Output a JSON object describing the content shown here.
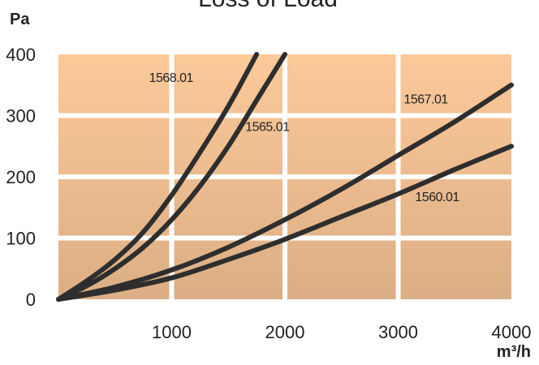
{
  "chart_data": {
    "type": "line",
    "title": "Loss of Load",
    "ylabel": "Pa",
    "xlabel": "m³/h",
    "xlim": [
      0,
      4000
    ],
    "ylim": [
      0,
      400
    ],
    "x_ticks": [
      1000,
      2000,
      3000,
      4000
    ],
    "y_ticks": [
      0,
      100,
      200,
      300,
      400
    ],
    "grid": true,
    "colors": {
      "band_top": "#fcc999",
      "band_bottom": "#dcae85",
      "line": "#2e2e2e"
    },
    "series": [
      {
        "name": "1568.01",
        "x": [
          0,
          250,
          500,
          750,
          1000,
          1250,
          1500,
          1750
        ],
        "y": [
          0,
          30,
          65,
          110,
          170,
          240,
          315,
          400
        ]
      },
      {
        "name": "1565.01",
        "x": [
          0,
          250,
          500,
          750,
          1000,
          1250,
          1500,
          1750,
          2000
        ],
        "y": [
          0,
          22,
          50,
          85,
          130,
          185,
          250,
          325,
          400
        ]
      },
      {
        "name": "1567.01",
        "x": [
          0,
          500,
          1000,
          1500,
          2000,
          2500,
          3000,
          3500,
          4000
        ],
        "y": [
          0,
          20,
          48,
          85,
          130,
          180,
          235,
          290,
          350
        ]
      },
      {
        "name": "1560.01",
        "x": [
          0,
          500,
          1000,
          1500,
          2000,
          2500,
          3000,
          3500,
          4000
        ],
        "y": [
          0,
          15,
          35,
          65,
          98,
          135,
          172,
          212,
          250
        ]
      }
    ]
  }
}
